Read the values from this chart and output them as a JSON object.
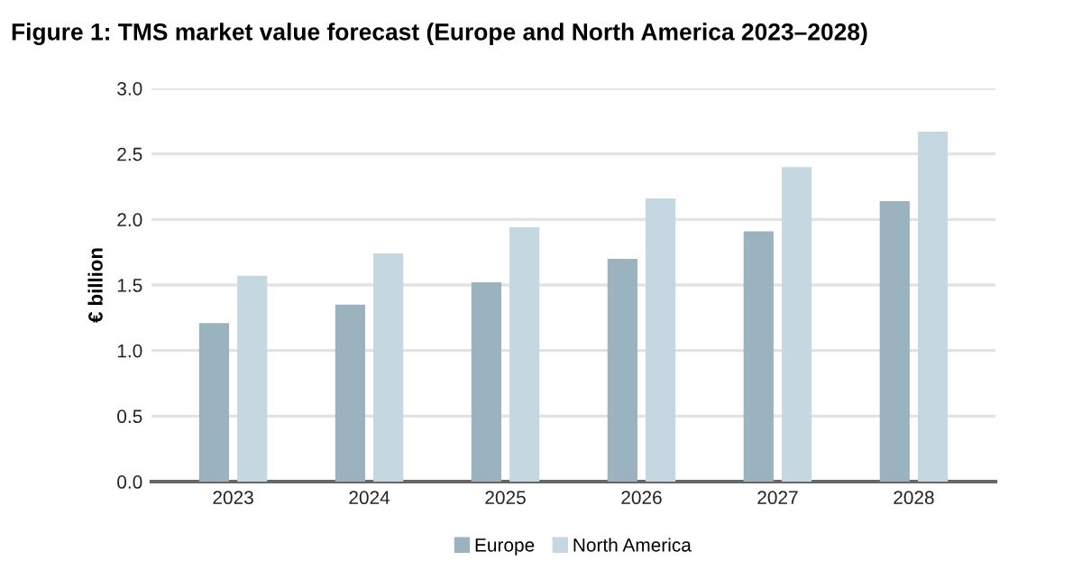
{
  "chart_data": {
    "type": "bar",
    "title": "Figure 1: TMS market value forecast (Europe and North America 2023–2028)",
    "ylabel": "€ billion",
    "categories": [
      "2023",
      "2024",
      "2025",
      "2026",
      "2027",
      "2028"
    ],
    "series": [
      {
        "name": "Europe",
        "color": "#9ab3be",
        "values": [
          1.21,
          1.35,
          1.52,
          1.7,
          1.91,
          2.14
        ]
      },
      {
        "name": "North America",
        "color": "#c5d8e2",
        "values": [
          1.57,
          1.74,
          1.94,
          2.16,
          2.4,
          2.67
        ]
      }
    ],
    "ylim": [
      0,
      3.0
    ],
    "yticks": [
      {
        "value": 0,
        "label": "0.0"
      },
      {
        "value": 0.5,
        "label": "0.5"
      },
      {
        "value": 1,
        "label": "1.0"
      },
      {
        "value": 1.5,
        "label": "1.5"
      },
      {
        "value": 2,
        "label": "2.0"
      },
      {
        "value": 2.5,
        "label": "2.5"
      },
      {
        "value": 3,
        "label": "3.0"
      }
    ],
    "grid": "y",
    "legend": "bottom"
  }
}
